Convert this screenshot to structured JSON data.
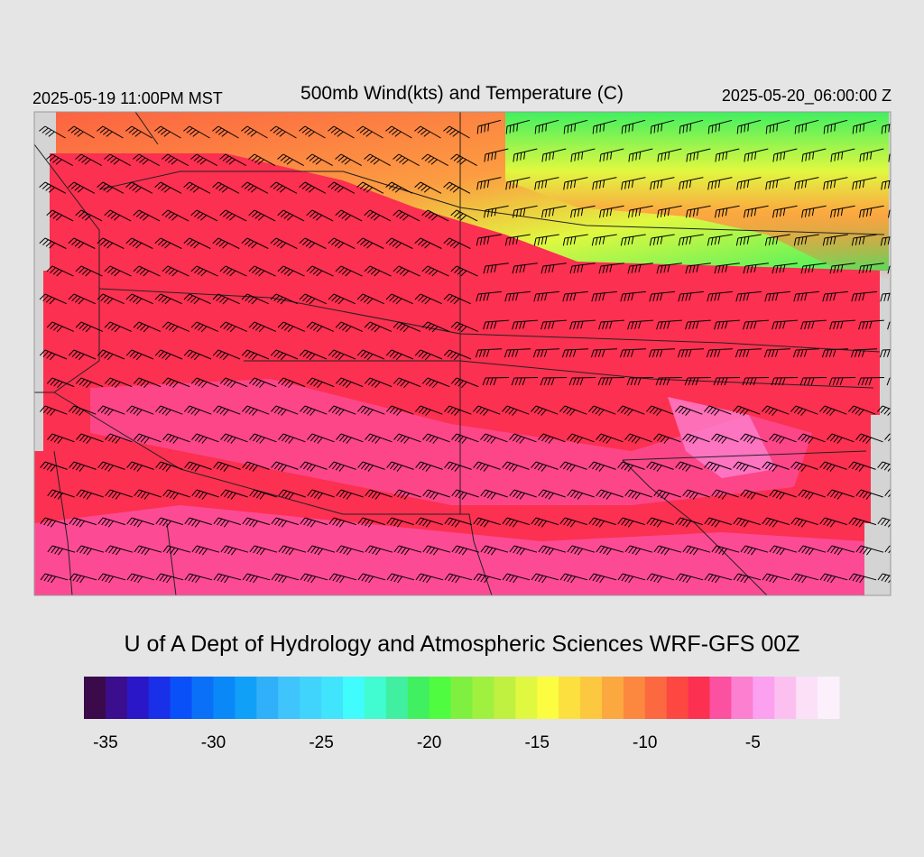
{
  "header": {
    "left": "2025-05-19 11:00PM MST",
    "title": "500mb Wind(kts) and Temperature (C)",
    "right": "2025-05-20_06:00:00 Z"
  },
  "credit": "U of A Dept of Hydrology and Atmospheric Sciences WRF-GFS 00Z",
  "colorbar": {
    "range": [
      -36,
      -1
    ],
    "ticks": [
      -35,
      -30,
      -25,
      -20,
      -15,
      -10,
      -5
    ],
    "colors": [
      "#3a0a4a",
      "#3a0e8c",
      "#2a18c8",
      "#1a30e8",
      "#0a50f8",
      "#0a70f8",
      "#0a88f8",
      "#10a0f8",
      "#30b0f8",
      "#40c4fc",
      "#40d4fc",
      "#40e4fc",
      "#40fcfc",
      "#40fcd0",
      "#40f0a0",
      "#40f060",
      "#50fc40",
      "#80f040",
      "#a0f040",
      "#c0f040",
      "#e0f840",
      "#fcfc40",
      "#fce040",
      "#fcc840",
      "#fca840",
      "#fc8840",
      "#fc6840",
      "#fc4840",
      "#fc3050",
      "#fc50a0",
      "#fc80d0",
      "#fca0f0",
      "#fcc0f0",
      "#fce0f8",
      "#fcf0fc"
    ]
  }
}
